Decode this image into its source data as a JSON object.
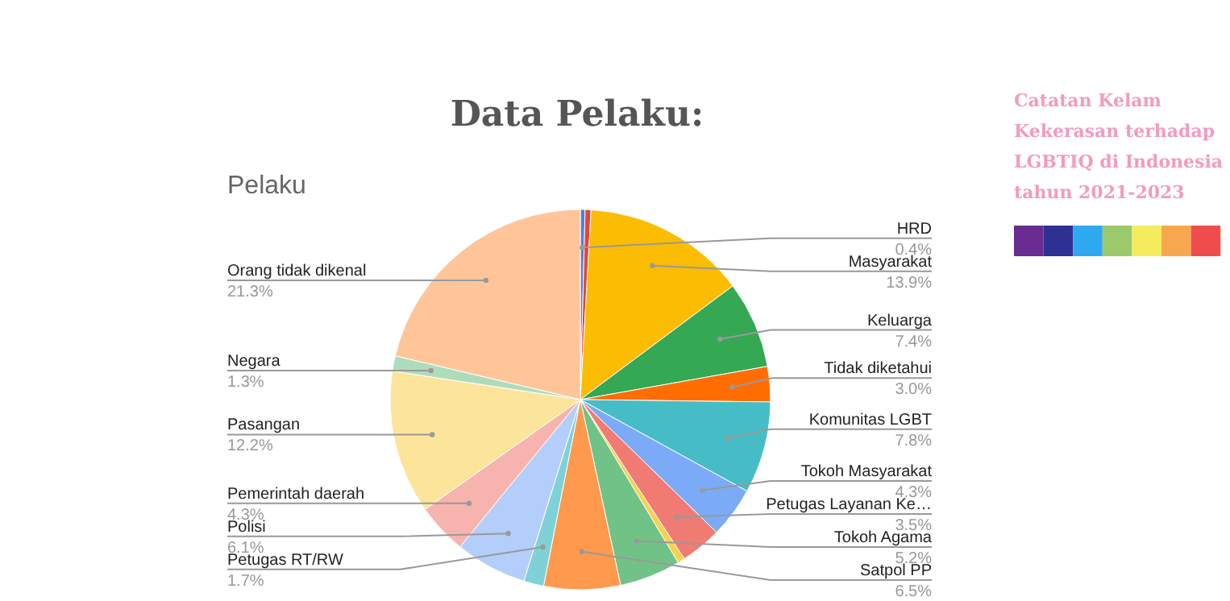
{
  "chart_data": {
    "type": "pie",
    "title": "Data Pelaku:",
    "subtitle": "Pelaku",
    "annotations": [
      "Catatan Kelam Kekerasan terhadap LGBTIQ di Indonesia tahun 2021-2023"
    ],
    "categories": [
      "HRD",
      null,
      "Masyarakat",
      "Keluarga",
      "Tidak diketahui",
      "Komunitas LGBT",
      "Tokoh Masyarakat",
      "Petugas Layanan Ke…",
      null,
      "Tokoh Agama",
      "Satpol PP",
      "Petugas RT/RW",
      "Polisi",
      "Pemerintah daerah",
      "Pasangan",
      "Negara",
      "Orang tidak dikenal"
    ],
    "values": [
      0.4,
      0.5,
      13.9,
      7.4,
      3.0,
      7.8,
      4.3,
      3.5,
      0.6,
      5.2,
      6.5,
      1.7,
      6.1,
      4.3,
      12.2,
      1.3,
      21.3
    ],
    "value_labels": [
      "0.4%",
      null,
      "13.9%",
      "7.4%",
      "3.0%",
      "7.8%",
      "4.3%",
      "3.5%",
      null,
      "5.2%",
      "6.5%",
      "1.7%",
      "6.1%",
      "4.3%",
      "12.2%",
      "1.3%",
      "21.3%"
    ],
    "colors": [
      "#4f7fe0",
      "#ea4335",
      "#fbbc04",
      "#34a853",
      "#ff6d01",
      "#46bdc6",
      "#7baaf7",
      "#f07b72",
      "#fcd04f",
      "#71c287",
      "#ff994d",
      "#7ed1d7",
      "#b3cefb",
      "#f7b4ae",
      "#fde49b",
      "#aedcba",
      "#ffc599"
    ]
  }
}
